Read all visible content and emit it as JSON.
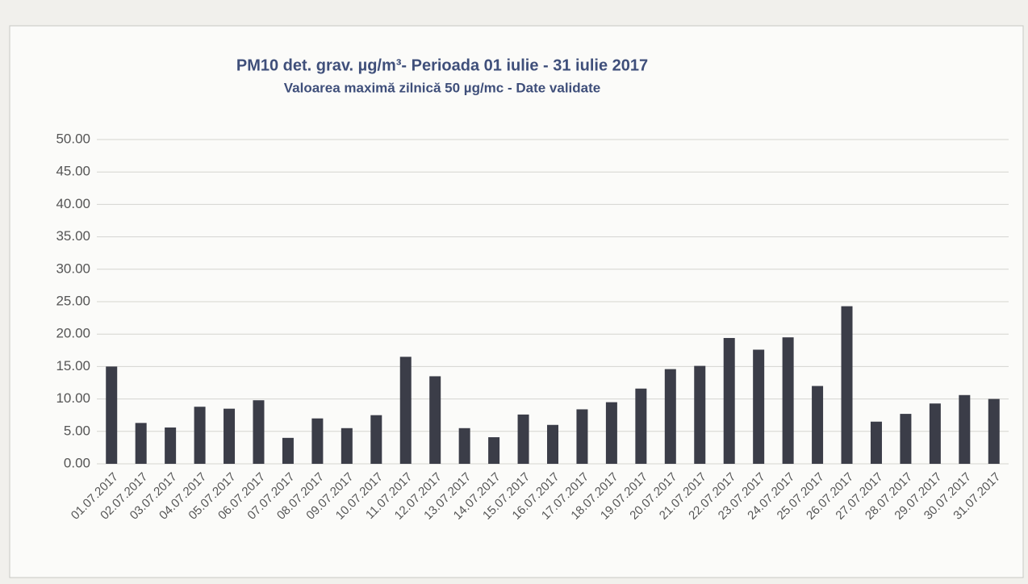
{
  "chart_data": {
    "type": "bar",
    "title": "PM10 det. grav. µg/m³- Perioada 01 iulie - 31 iulie 2017",
    "subtitle": "Valoarea maximă zilnică 50 µg/mc - Date validate",
    "categories": [
      "01.07.2017",
      "02.07.2017",
      "03.07.2017",
      "04.07.2017",
      "05.07.2017",
      "06.07.2017",
      "07.07.2017",
      "08.07.2017",
      "09.07.2017",
      "10.07.2017",
      "11.07.2017",
      "12.07.2017",
      "13.07.2017",
      "14.07.2017",
      "15.07.2017",
      "16.07.2017",
      "17.07.2017",
      "18.07.2017",
      "19.07.2017",
      "20.07.2017",
      "21.07.2017",
      "22.07.2017",
      "23.07.2017",
      "24.07.2017",
      "25.07.2017",
      "26.07.2017",
      "27.07.2017",
      "28.07.2017",
      "29.07.2017",
      "30.07.2017",
      "31.07.2017"
    ],
    "values": [
      15.0,
      6.3,
      5.6,
      8.8,
      8.5,
      9.8,
      4.0,
      7.0,
      5.5,
      7.5,
      16.5,
      13.5,
      5.5,
      4.1,
      7.6,
      6.0,
      8.4,
      9.5,
      11.6,
      14.6,
      15.1,
      19.4,
      17.6,
      19.5,
      12.0,
      24.3,
      6.5,
      7.7,
      9.3,
      10.6,
      10.0
    ],
    "color": "#3b3d48",
    "ylim": [
      0,
      50
    ],
    "yticks": [
      {
        "value": 0,
        "label": "0.00"
      },
      {
        "value": 5,
        "label": "5.00"
      },
      {
        "value": 10,
        "label": "10.00"
      },
      {
        "value": 15,
        "label": "15.00"
      },
      {
        "value": 20,
        "label": "20.00"
      },
      {
        "value": 25,
        "label": "25.00"
      },
      {
        "value": 30,
        "label": "30.00"
      },
      {
        "value": 35,
        "label": "35.00"
      },
      {
        "value": 40,
        "label": "40.00"
      },
      {
        "value": 45,
        "label": "45.00"
      },
      {
        "value": 50,
        "label": "50.00"
      }
    ],
    "grid": true
  }
}
